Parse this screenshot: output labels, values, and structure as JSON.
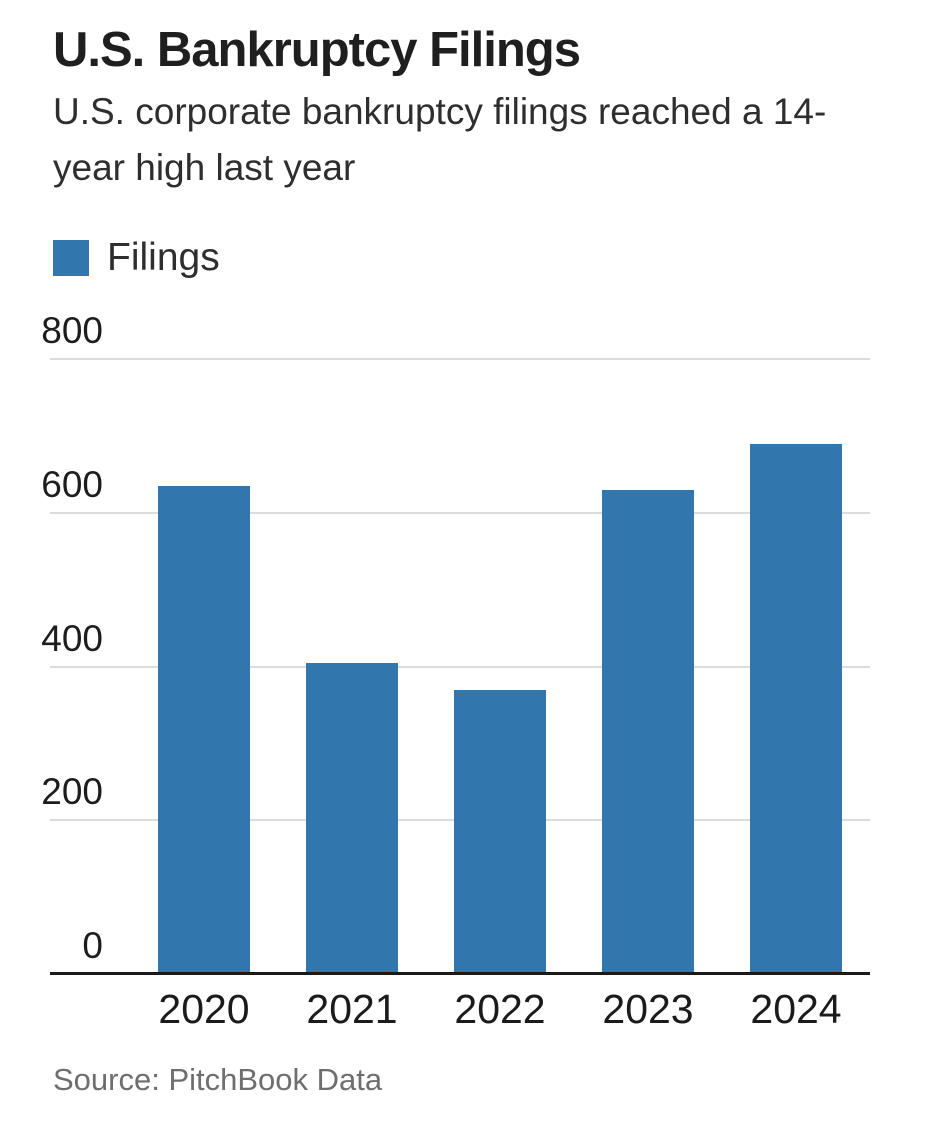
{
  "header": {
    "title": "U.S. Bankruptcy Filings",
    "subtitle": "U.S. corporate bankruptcy filings reached a 14-year high last year",
    "subtitle_lines": [
      "U.S. corporate bankruptcy filings reached a 14-",
      "year high last year"
    ]
  },
  "legend": {
    "label": "Filings",
    "swatch_color": "#3177ad"
  },
  "chart_data": {
    "type": "bar",
    "title": "U.S. Bankruptcy Filings",
    "subtitle": "U.S. corporate bankruptcy filings reached a 14-year high last year",
    "categories": [
      "2020",
      "2021",
      "2022",
      "2023",
      "2024"
    ],
    "series": [
      {
        "name": "Filings",
        "values": [
          635,
          405,
          370,
          630,
          690
        ]
      }
    ],
    "xlabel": "",
    "ylabel": "",
    "ylim": [
      0,
      800
    ],
    "yticks": [
      0,
      200,
      400,
      600,
      800
    ],
    "grid": true,
    "legend_position": "top-left",
    "bar_color": "#3177ad",
    "gridline_color": "#dcdcdc",
    "axis_color": "#1a1a1a"
  },
  "source": {
    "text": "Source: PitchBook Data"
  }
}
